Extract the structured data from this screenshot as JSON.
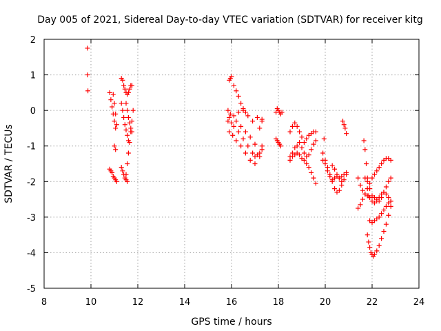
{
  "chart_data": {
    "type": "scatter",
    "title": "Day 005 of 2021, Sidereal Day-to-day VTEC variation (SDTVAR) for receiver kitg",
    "xlabel": "GPS time / hours",
    "ylabel": "SDTVAR / TECUs",
    "xlim": [
      8,
      24
    ],
    "ylim": [
      -5,
      2
    ],
    "xticks": [
      8,
      10,
      12,
      14,
      16,
      18,
      20,
      22,
      24
    ],
    "yticks": [
      -5,
      -4,
      -3,
      -2,
      -1,
      0,
      1,
      2
    ],
    "grid": true,
    "marker": "+",
    "color": "#ff0000",
    "series": [
      {
        "name": "s1",
        "x": [
          9.85,
          9.86,
          9.87
        ],
        "y": [
          1.75,
          1.0,
          0.55
        ]
      },
      {
        "name": "s2",
        "x": [
          10.8,
          10.85,
          10.9,
          10.95,
          11.0,
          11.05,
          11.1
        ],
        "y": [
          -1.65,
          -1.7,
          -1.75,
          -1.85,
          -1.9,
          -1.95,
          -2.0
        ]
      },
      {
        "name": "s3",
        "x": [
          10.8,
          10.85,
          10.9,
          10.95,
          11.0,
          11.05
        ],
        "y": [
          0.5,
          0.3,
          0.1,
          -0.1,
          -0.3,
          -0.5
        ]
      },
      {
        "name": "s4",
        "x": [
          10.95,
          11.0,
          11.05,
          11.1
        ],
        "y": [
          0.45,
          0.2,
          -0.1,
          -0.4
        ]
      },
      {
        "name": "s5",
        "x": [
          11.0,
          11.05
        ],
        "y": [
          -1.0,
          -1.1
        ]
      },
      {
        "name": "s6",
        "x": [
          11.3,
          11.35,
          11.4,
          11.45,
          11.5,
          11.55,
          11.6,
          11.65,
          11.7,
          11.75
        ],
        "y": [
          0.9,
          0.85,
          0.7,
          0.6,
          0.5,
          0.45,
          0.5,
          0.6,
          0.7,
          0.7
        ]
      },
      {
        "name": "s7",
        "x": [
          11.3,
          11.35,
          11.4,
          11.45,
          11.5,
          11.55,
          11.6
        ],
        "y": [
          0.2,
          0.0,
          -0.2,
          -0.4,
          -0.55,
          -0.7,
          -0.85
        ]
      },
      {
        "name": "s8",
        "x": [
          11.3,
          11.35,
          11.4,
          11.45,
          11.5,
          11.55
        ],
        "y": [
          -1.6,
          -1.7,
          -1.8,
          -1.9,
          -1.95,
          -2.0
        ]
      },
      {
        "name": "s9",
        "x": [
          11.5,
          11.55,
          11.6,
          11.65,
          11.7,
          11.75,
          11.8
        ],
        "y": [
          -1.8,
          -1.5,
          -1.2,
          -0.9,
          -0.6,
          -0.3,
          0.0
        ]
      },
      {
        "name": "s10",
        "x": [
          11.5,
          11.55,
          11.6,
          11.65,
          11.7,
          11.75
        ],
        "y": [
          0.2,
          0.0,
          -0.2,
          -0.35,
          -0.5,
          -0.6
        ]
      },
      {
        "name": "s11",
        "x": [
          15.9,
          15.95,
          16.0,
          16.1,
          16.2,
          16.3,
          16.4,
          16.5,
          16.6
        ],
        "y": [
          0.85,
          0.9,
          0.95,
          0.7,
          0.55,
          0.4,
          0.2,
          0.05,
          -0.05
        ]
      },
      {
        "name": "s12",
        "x": [
          15.85,
          15.95,
          16.1,
          16.3,
          16.5,
          16.7,
          16.9,
          17.1,
          17.3
        ],
        "y": [
          0.0,
          -0.1,
          -0.15,
          -0.05,
          0.0,
          -0.15,
          -0.3,
          -0.2,
          -0.25
        ]
      },
      {
        "name": "s13",
        "x": [
          15.85,
          16.0,
          16.2,
          16.4,
          16.6,
          16.8,
          17.0,
          17.2,
          17.3
        ],
        "y": [
          -0.3,
          -0.35,
          -0.3,
          -0.45,
          -0.6,
          -0.75,
          -0.95,
          -0.5,
          -0.3
        ]
      },
      {
        "name": "s14",
        "x": [
          15.9,
          16.05,
          16.2,
          16.4,
          16.6,
          16.8,
          17.0,
          17.2,
          17.3
        ],
        "y": [
          -0.6,
          -0.7,
          -0.85,
          -1.0,
          -1.2,
          -1.4,
          -1.5,
          -1.3,
          -1.0
        ]
      },
      {
        "name": "s15",
        "x": [
          15.9,
          16.1,
          16.3,
          16.5,
          16.7,
          16.9,
          17.0,
          17.1,
          17.2,
          17.3
        ],
        "y": [
          -0.2,
          -0.45,
          -0.6,
          -0.8,
          -1.0,
          -1.2,
          -1.3,
          -1.25,
          -1.2,
          -1.1
        ]
      },
      {
        "name": "s16",
        "x": [
          17.9,
          17.95,
          18.0,
          18.05,
          18.1,
          18.15
        ],
        "y": [
          -0.05,
          0.05,
          0.0,
          -0.05,
          -0.1,
          -0.05
        ]
      },
      {
        "name": "s17",
        "x": [
          17.9,
          17.95,
          18.0,
          18.05,
          18.1
        ],
        "y": [
          -0.8,
          -0.85,
          -0.9,
          -0.95,
          -1.0
        ]
      },
      {
        "name": "s18",
        "x": [
          18.5,
          18.6,
          18.7,
          18.8,
          18.9,
          19.0,
          19.1,
          19.2,
          19.3,
          19.4,
          19.5,
          19.6
        ],
        "y": [
          -0.6,
          -0.45,
          -0.35,
          -0.45,
          -0.6,
          -0.75,
          -0.9,
          -0.8,
          -0.7,
          -0.65,
          -0.6,
          -0.6
        ]
      },
      {
        "name": "s19",
        "x": [
          18.5,
          18.6,
          18.7,
          18.8,
          18.9,
          19.0,
          19.1,
          19.2,
          19.3,
          19.4,
          19.5,
          19.6
        ],
        "y": [
          -1.3,
          -1.2,
          -1.05,
          -1.0,
          -0.9,
          -1.05,
          -1.2,
          -1.3,
          -1.25,
          -1.1,
          -0.95,
          -0.85
        ]
      },
      {
        "name": "s20",
        "x": [
          18.5,
          18.6,
          18.7,
          18.8,
          18.9,
          19.0,
          19.1,
          19.2,
          19.3,
          19.4,
          19.5,
          19.6
        ],
        "y": [
          -1.4,
          -1.3,
          -1.25,
          -1.2,
          -1.25,
          -1.35,
          -1.4,
          -1.5,
          -1.6,
          -1.75,
          -1.9,
          -2.05
        ]
      },
      {
        "name": "s21",
        "x": [
          19.9,
          20.0,
          20.1,
          20.2,
          20.3,
          20.4,
          20.5,
          20.6,
          20.7
        ],
        "y": [
          -1.2,
          -1.4,
          -1.6,
          -1.8,
          -2.0,
          -2.2,
          -2.3,
          -2.25,
          -2.1
        ]
      },
      {
        "name": "s22",
        "x": [
          19.9,
          20.0,
          20.1,
          20.2,
          20.3,
          20.4,
          20.5,
          20.6,
          20.7,
          20.8,
          20.9
        ],
        "y": [
          -1.4,
          -1.5,
          -1.7,
          -1.85,
          -1.95,
          -1.9,
          -1.85,
          -1.9,
          -2.0,
          -1.95,
          -1.8
        ]
      },
      {
        "name": "s23",
        "x": [
          20.3,
          20.4,
          20.5,
          20.6,
          20.7,
          20.8,
          20.9
        ],
        "y": [
          -1.55,
          -1.65,
          -1.8,
          -1.9,
          -1.85,
          -1.8,
          -1.75
        ]
      },
      {
        "name": "s24",
        "x": [
          20.75,
          20.8,
          20.85,
          20.9
        ],
        "y": [
          -0.3,
          -0.4,
          -0.5,
          -0.65
        ]
      },
      {
        "name": "s25",
        "x": [
          19.95
        ],
        "y": [
          -0.8
        ]
      },
      {
        "name": "s26",
        "x": [
          21.4,
          21.5,
          21.6,
          21.7,
          21.8,
          21.9,
          22.0,
          22.1,
          22.2,
          22.3,
          22.4,
          22.5,
          22.6,
          22.7,
          22.8
        ],
        "y": [
          -1.9,
          -2.1,
          -2.25,
          -2.35,
          -2.4,
          -2.45,
          -2.55,
          -2.6,
          -2.55,
          -2.45,
          -2.35,
          -2.3,
          -2.35,
          -2.45,
          -2.55
        ]
      },
      {
        "name": "s27",
        "x": [
          21.4,
          21.5,
          21.6,
          21.7,
          21.8,
          21.9,
          22.0,
          22.1,
          22.2,
          22.3,
          22.4,
          22.5,
          22.6,
          22.7,
          22.8
        ],
        "y": [
          -2.75,
          -2.65,
          -2.5,
          -2.35,
          -2.2,
          -2.05,
          -1.9,
          -1.8,
          -1.7,
          -1.6,
          -1.5,
          -1.4,
          -1.35,
          -1.35,
          -1.4
        ]
      },
      {
        "name": "s28",
        "x": [
          21.7,
          21.8,
          21.9,
          22.0,
          22.1,
          22.2,
          22.3,
          22.4,
          22.5,
          22.6,
          22.7,
          22.8
        ],
        "y": [
          -1.9,
          -2.0,
          -2.2,
          -2.4,
          -2.45,
          -2.5,
          -2.55,
          -2.45,
          -2.3,
          -2.15,
          -2.0,
          -1.9
        ]
      },
      {
        "name": "s29",
        "x": [
          21.65,
          21.7,
          21.75,
          21.8,
          21.85,
          21.9,
          22.0,
          22.1,
          22.2,
          22.3,
          22.4,
          22.5,
          22.6,
          22.7,
          22.8
        ],
        "y": [
          -0.85,
          -1.1,
          -1.5,
          -1.9,
          -2.4,
          -3.1,
          -3.15,
          -3.1,
          -3.05,
          -3.0,
          -2.9,
          -2.8,
          -2.7,
          -2.6,
          -2.55
        ]
      },
      {
        "name": "s30",
        "x": [
          21.8,
          21.85,
          21.9,
          21.95,
          22.0,
          22.05,
          22.1,
          22.2,
          22.3,
          22.4,
          22.5,
          22.6,
          22.7,
          22.8
        ],
        "y": [
          -3.5,
          -3.7,
          -3.85,
          -4.0,
          -4.05,
          -4.1,
          -4.05,
          -3.95,
          -3.8,
          -3.6,
          -3.4,
          -3.2,
          -2.95,
          -2.7
        ]
      }
    ]
  }
}
